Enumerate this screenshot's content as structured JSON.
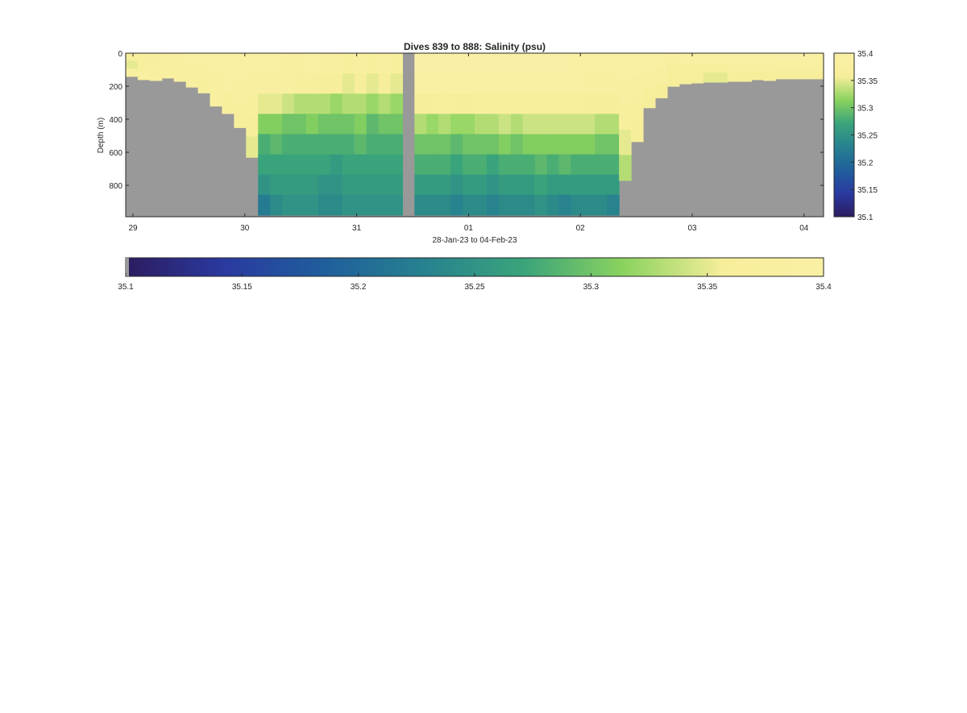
{
  "chart_data": {
    "type": "heatmap",
    "title": "Dives 839 to 888: Salinity (psu)",
    "xlabel": "28-Jan-23 to 04-Feb-23",
    "ylabel": "Depth (m)",
    "x_ticks": [
      "29",
      "30",
      "31",
      "01",
      "02",
      "03",
      "04"
    ],
    "y_ticks": [
      "0",
      "200",
      "400",
      "600",
      "800"
    ],
    "colorbar_ticks": [
      "35.1",
      "35.15",
      "35.2",
      "35.25",
      "35.3",
      "35.35",
      "35.4"
    ],
    "clim": [
      35.1,
      35.4
    ],
    "ylim": [
      0,
      990
    ],
    "y_reversed": true,
    "grid": false,
    "colormap": [
      "#2c1c5f",
      "#2a3aa0",
      "#1f5f9c",
      "#27828f",
      "#3aa47a",
      "#8bd35e",
      "#f7ee9b",
      "#faf0a5"
    ],
    "missing_color": "#999999",
    "columns": [
      {
        "bottom": 140,
        "s": [
          35.36,
          35.35,
          35.38
        ]
      },
      {
        "bottom": 160,
        "s": [
          35.37,
          35.37,
          35.38
        ]
      },
      {
        "bottom": 165,
        "s": [
          35.37,
          35.38,
          35.38
        ]
      },
      {
        "bottom": 150,
        "s": [
          35.38,
          35.38,
          35.38
        ]
      },
      {
        "bottom": 170,
        "s": [
          35.38,
          35.38,
          35.38
        ]
      },
      {
        "bottom": 205,
        "s": [
          35.39,
          35.38,
          35.38
        ]
      },
      {
        "bottom": 240,
        "s": [
          35.39,
          35.38,
          35.37
        ]
      },
      {
        "bottom": 320,
        "s": [
          35.39,
          35.38,
          35.38
        ]
      },
      {
        "bottom": 365,
        "s": [
          35.39,
          35.39,
          35.37
        ]
      },
      {
        "bottom": 450,
        "s": [
          35.39,
          35.38,
          35.36
        ]
      },
      {
        "bottom": 630,
        "s": [
          35.39,
          35.38,
          35.37,
          35.36,
          35.35
        ]
      },
      {
        "bottom": 980,
        "s": [
          35.39,
          35.38,
          35.35,
          35.31,
          35.28,
          35.27,
          35.25,
          35.22
        ]
      },
      {
        "bottom": 980,
        "s": [
          35.39,
          35.38,
          35.35,
          35.31,
          35.29,
          35.27,
          35.26,
          35.24
        ]
      },
      {
        "bottom": 980,
        "s": [
          35.38,
          35.38,
          35.34,
          35.3,
          35.28,
          35.27,
          35.26,
          35.25
        ]
      },
      {
        "bottom": 980,
        "s": [
          35.38,
          35.37,
          35.33,
          35.3,
          35.28,
          35.27,
          35.26,
          35.25
        ]
      },
      {
        "bottom": 980,
        "s": [
          35.39,
          35.37,
          35.33,
          35.31,
          35.28,
          35.27,
          35.26,
          35.25
        ]
      },
      {
        "bottom": 980,
        "s": [
          35.38,
          35.36,
          35.33,
          35.3,
          35.28,
          35.27,
          35.25,
          35.24
        ]
      },
      {
        "bottom": 980,
        "s": [
          35.38,
          35.36,
          35.32,
          35.3,
          35.28,
          35.26,
          35.25,
          35.24
        ]
      },
      {
        "bottom": 980,
        "s": [
          35.37,
          35.35,
          35.33,
          35.3,
          35.28,
          35.27,
          35.26,
          35.25
        ]
      },
      {
        "bottom": 980,
        "s": [
          35.38,
          35.36,
          35.33,
          35.31,
          35.29,
          35.27,
          35.26,
          35.25
        ]
      },
      {
        "bottom": 980,
        "s": [
          35.37,
          35.35,
          35.32,
          35.29,
          35.28,
          35.27,
          35.26,
          35.25
        ]
      },
      {
        "bottom": 980,
        "s": [
          35.38,
          35.36,
          35.33,
          35.3,
          35.28,
          35.27,
          35.26,
          35.25
        ]
      },
      {
        "bottom": 980,
        "s": [
          35.37,
          35.35,
          35.32,
          35.3,
          35.28,
          35.27,
          35.26,
          35.25
        ]
      },
      {
        "bottom": 0,
        "s": []
      },
      {
        "bottom": 980,
        "s": [
          35.4,
          35.39,
          35.36,
          35.33,
          35.3,
          35.28,
          35.26,
          35.24
        ]
      },
      {
        "bottom": 980,
        "s": [
          35.4,
          35.39,
          35.36,
          35.32,
          35.3,
          35.28,
          35.26,
          35.24
        ]
      },
      {
        "bottom": 980,
        "s": [
          35.4,
          35.39,
          35.37,
          35.33,
          35.3,
          35.28,
          35.26,
          35.24
        ]
      },
      {
        "bottom": 980,
        "s": [
          35.4,
          35.39,
          35.36,
          35.32,
          35.29,
          35.27,
          35.25,
          35.23
        ]
      },
      {
        "bottom": 980,
        "s": [
          35.4,
          35.39,
          35.36,
          35.32,
          35.3,
          35.28,
          35.26,
          35.24
        ]
      },
      {
        "bottom": 980,
        "s": [
          35.4,
          35.39,
          35.37,
          35.33,
          35.3,
          35.28,
          35.26,
          35.24
        ]
      },
      {
        "bottom": 980,
        "s": [
          35.4,
          35.39,
          35.37,
          35.33,
          35.3,
          35.27,
          35.25,
          35.23
        ]
      },
      {
        "bottom": 980,
        "s": [
          35.4,
          35.39,
          35.37,
          35.34,
          35.31,
          35.28,
          35.26,
          35.24
        ]
      },
      {
        "bottom": 980,
        "s": [
          35.4,
          35.39,
          35.37,
          35.33,
          35.3,
          35.28,
          35.26,
          35.24
        ]
      },
      {
        "bottom": 980,
        "s": [
          35.4,
          35.39,
          35.37,
          35.34,
          35.31,
          35.28,
          35.26,
          35.24
        ]
      },
      {
        "bottom": 980,
        "s": [
          35.4,
          35.39,
          35.37,
          35.34,
          35.31,
          35.29,
          35.27,
          35.25
        ]
      },
      {
        "bottom": 980,
        "s": [
          35.4,
          35.39,
          35.37,
          35.34,
          35.31,
          35.28,
          35.26,
          35.24
        ]
      },
      {
        "bottom": 980,
        "s": [
          35.4,
          35.39,
          35.37,
          35.34,
          35.31,
          35.29,
          35.26,
          35.23
        ]
      },
      {
        "bottom": 980,
        "s": [
          35.39,
          35.39,
          35.37,
          35.34,
          35.31,
          35.28,
          35.26,
          35.24
        ]
      },
      {
        "bottom": 980,
        "s": [
          35.39,
          35.38,
          35.36,
          35.34,
          35.31,
          35.28,
          35.26,
          35.24
        ]
      },
      {
        "bottom": 980,
        "s": [
          35.39,
          35.38,
          35.36,
          35.33,
          35.3,
          35.28,
          35.26,
          35.24
        ]
      },
      {
        "bottom": 980,
        "s": [
          35.39,
          35.38,
          35.36,
          35.33,
          35.3,
          35.28,
          35.26,
          35.23
        ]
      },
      {
        "bottom": 770,
        "s": [
          35.39,
          35.38,
          35.37,
          35.35,
          35.33
        ]
      },
      {
        "bottom": 535,
        "s": [
          35.39,
          35.38,
          35.37,
          35.36
        ]
      },
      {
        "bottom": 330,
        "s": [
          35.39,
          35.38,
          35.36
        ]
      },
      {
        "bottom": 270,
        "s": [
          35.39,
          35.38,
          35.36
        ]
      },
      {
        "bottom": 200,
        "s": [
          35.38,
          35.36,
          35.36
        ]
      },
      {
        "bottom": 185,
        "s": [
          35.39,
          35.37,
          35.36
        ]
      },
      {
        "bottom": 180,
        "s": [
          35.39,
          35.37,
          35.36
        ]
      },
      {
        "bottom": 175,
        "s": [
          35.39,
          35.37,
          35.35
        ]
      },
      {
        "bottom": 175,
        "s": [
          35.39,
          35.37,
          35.35
        ]
      },
      {
        "bottom": 170,
        "s": [
          35.4,
          35.38,
          35.36
        ]
      },
      {
        "bottom": 170,
        "s": [
          35.4,
          35.38,
          35.36
        ]
      },
      {
        "bottom": 160,
        "s": [
          35.4,
          35.38,
          35.36
        ]
      },
      {
        "bottom": 165,
        "s": [
          35.4,
          35.38,
          35.36
        ]
      },
      {
        "bottom": 155,
        "s": [
          35.4,
          35.38,
          35.36
        ]
      },
      {
        "bottom": 155,
        "s": [
          35.4,
          35.38,
          35.36
        ]
      },
      {
        "bottom": 155,
        "s": [
          35.4,
          35.38,
          35.36
        ]
      },
      {
        "bottom": 155,
        "s": [
          35.39,
          35.38,
          35.36
        ]
      }
    ]
  }
}
